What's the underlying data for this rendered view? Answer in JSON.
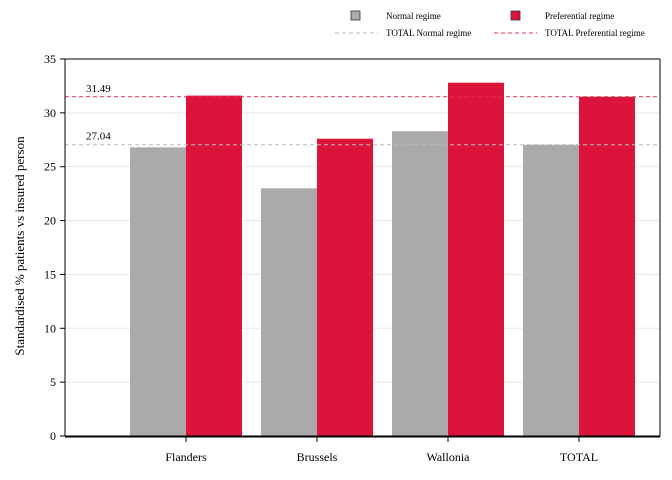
{
  "chart_data": {
    "type": "bar",
    "categories": [
      "Flanders",
      "Brussels",
      "Wallonia",
      "TOTAL"
    ],
    "series": [
      {
        "name": "Normal regime",
        "values": [
          26.8,
          23.0,
          28.3,
          27.04
        ]
      },
      {
        "name": "Preferential regime",
        "values": [
          31.6,
          27.6,
          32.8,
          31.49
        ]
      }
    ],
    "reference_lines": [
      {
        "name": "TOTAL Normal regime",
        "value": 27.04,
        "label": "27.04",
        "style": "dashed"
      },
      {
        "name": "TOTAL Preferential regime",
        "value": 31.49,
        "label": "31.49",
        "style": "dashed"
      }
    ],
    "title": "",
    "xlabel": "",
    "ylabel": "Standardised % patients vs insured person",
    "ylim": [
      0,
      35
    ],
    "yticks": [
      0,
      5,
      10,
      15,
      20,
      25,
      30,
      35
    ],
    "grid": true,
    "legend_position": "top-right"
  },
  "colors": {
    "normal": "#aaaaaa",
    "preferential": "#dc143c",
    "normal_line": "#bbbbbb",
    "preferential_line": "#e0304e",
    "grid": "#e8e8e8",
    "axis": "#000000"
  }
}
